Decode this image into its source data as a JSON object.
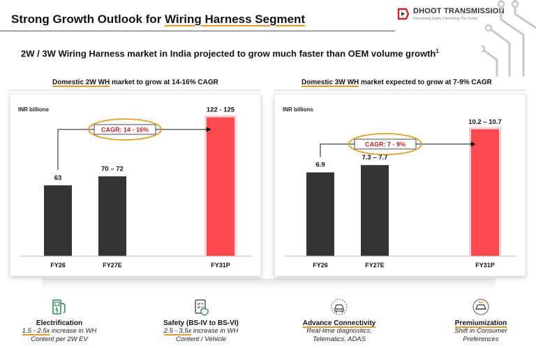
{
  "header": {
    "title_prefix": "Strong Growth Outlook for ",
    "title_highlight": "Wiring Harness Segment",
    "brand": "DHOOT TRANSMISSION",
    "brand_tagline": "Harnessing Safety Electrifying The Future"
  },
  "subtitle": {
    "text": "2W / 3W Wiring Harness market in India projected to grow much faster than OEM volume growth",
    "footnote": "1"
  },
  "colors": {
    "dark_bar": "#333333",
    "highlight_bar": "#ff4a4f",
    "accent": "#e0a030",
    "cagr_text": "#c0272d"
  },
  "chart_data": [
    {
      "type": "bar",
      "heading_underlined": "Domestic 2W WH",
      "heading_rest": " market to grow at 14-16% CAGR",
      "unit_label": "INR billions",
      "categories": [
        "FY26",
        "FY27E",
        "FY31P"
      ],
      "values": [
        63,
        71,
        123.5
      ],
      "data_labels": [
        "63",
        "70 – 72",
        "122 - 125"
      ],
      "highlight_index": 2,
      "annotation": "CAGR: 14 - 16%",
      "ylim": [
        0,
        135
      ]
    },
    {
      "type": "bar",
      "heading_underlined": "Domestic 3W WH",
      "heading_rest": " market expected to grow at 7-9% CAGR",
      "unit_label": "INR billions",
      "categories": [
        "FY26",
        "FY27E",
        "FY31P"
      ],
      "values": [
        6.9,
        7.5,
        10.45
      ],
      "data_labels": [
        "6.9",
        "7.3 – 7.7",
        "10.2 – 10.7"
      ],
      "highlight_index": 2,
      "annotation": "CAGR: 7 - 9%",
      "ylim": [
        0,
        12.5
      ]
    }
  ],
  "features": [
    {
      "icon": "ev-charger-icon",
      "title": "Electrification",
      "title_underlined": false,
      "line1_highlight": "1.5 - 2.5x",
      "line1_rest": " increase in WH",
      "line2": "Content per 2W EV"
    },
    {
      "icon": "safety-checklist-icon",
      "title": "Safety (BS-IV to BS-VI)",
      "title_underlined": false,
      "line1_highlight": "2.5 - 3.5x",
      "line1_rest": " increase in WH",
      "line2": "Content / Vehicle"
    },
    {
      "icon": "connected-car-icon",
      "title": "Advance Connectivity",
      "title_underlined": true,
      "line1_highlight": "",
      "line1_rest": "Real-time diagnostics,",
      "line2": "Telematics, ADAS"
    },
    {
      "icon": "premium-car-icon",
      "title": "Premiumization",
      "title_underlined": true,
      "line1_highlight": "",
      "line1_rest": "Shift in Consumer",
      "line2": "Preferences"
    }
  ]
}
